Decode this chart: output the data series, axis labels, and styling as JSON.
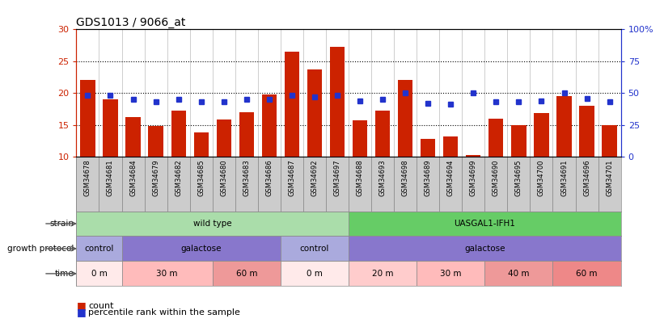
{
  "title": "GDS1013 / 9066_at",
  "samples": [
    "GSM34678",
    "GSM34681",
    "GSM34684",
    "GSM34679",
    "GSM34682",
    "GSM34685",
    "GSM34680",
    "GSM34683",
    "GSM34686",
    "GSM34687",
    "GSM34692",
    "GSM34697",
    "GSM34688",
    "GSM34693",
    "GSM34698",
    "GSM34689",
    "GSM34694",
    "GSM34699",
    "GSM34690",
    "GSM34695",
    "GSM34700",
    "GSM34691",
    "GSM34696",
    "GSM34701"
  ],
  "counts": [
    22.0,
    19.0,
    16.2,
    14.8,
    17.2,
    13.8,
    15.8,
    17.0,
    19.8,
    26.5,
    23.7,
    27.3,
    15.7,
    17.2,
    22.1,
    12.8,
    13.2,
    10.2,
    16.0,
    15.0,
    16.8,
    19.5,
    18.0,
    15.0
  ],
  "percentile_ranks": [
    48,
    48,
    45,
    43,
    45,
    43,
    43,
    45,
    45,
    48,
    47,
    48,
    44,
    45,
    50,
    42,
    41,
    50,
    43,
    43,
    44,
    50,
    46,
    43
  ],
  "ylim_left": [
    10,
    30
  ],
  "ylim_right": [
    0,
    100
  ],
  "yticks_left": [
    10,
    15,
    20,
    25,
    30
  ],
  "yticks_right": [
    0,
    25,
    50,
    75,
    100
  ],
  "ytick_labels_right": [
    "0",
    "25",
    "50",
    "75",
    "100%"
  ],
  "bar_color": "#cc2200",
  "marker_color": "#2233cc",
  "strain_groups": [
    {
      "label": "wild type",
      "start": 0,
      "end": 11,
      "color": "#aaddaa"
    },
    {
      "label": "UASGAL1-IFH1",
      "start": 12,
      "end": 23,
      "color": "#66cc66"
    }
  ],
  "growth_groups": [
    {
      "label": "control",
      "start": 0,
      "end": 1,
      "color": "#aaaadd"
    },
    {
      "label": "galactose",
      "start": 2,
      "end": 8,
      "color": "#8877cc"
    },
    {
      "label": "control",
      "start": 9,
      "end": 11,
      "color": "#aaaadd"
    },
    {
      "label": "galactose",
      "start": 12,
      "end": 23,
      "color": "#8877cc"
    }
  ],
  "time_groups": [
    {
      "label": "0 m",
      "start": 0,
      "end": 1,
      "color": "#ffeaea"
    },
    {
      "label": "30 m",
      "start": 2,
      "end": 5,
      "color": "#ffbbbb"
    },
    {
      "label": "60 m",
      "start": 6,
      "end": 8,
      "color": "#ee9999"
    },
    {
      "label": "0 m",
      "start": 9,
      "end": 11,
      "color": "#ffeaea"
    },
    {
      "label": "20 m",
      "start": 12,
      "end": 14,
      "color": "#ffcccc"
    },
    {
      "label": "30 m",
      "start": 15,
      "end": 17,
      "color": "#ffbbbb"
    },
    {
      "label": "40 m",
      "start": 18,
      "end": 20,
      "color": "#ee9999"
    },
    {
      "label": "60 m",
      "start": 21,
      "end": 23,
      "color": "#ee8888"
    }
  ],
  "legend_count_color": "#cc2200",
  "legend_pct_color": "#2233cc",
  "bg_color": "#ffffff",
  "axis_label_color": "#cc2200",
  "right_axis_color": "#2233cc",
  "chart_bg": "#ffffff",
  "sample_row_bg": "#cccccc"
}
